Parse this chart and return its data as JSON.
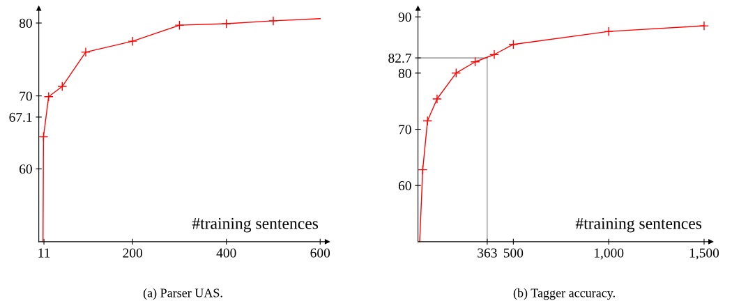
{
  "chart_data": [
    {
      "type": "line",
      "title": "(a) Parser UAS.",
      "xlabel": "#training sentences",
      "xlim": [
        0,
        615
      ],
      "ylim": [
        50,
        82
      ],
      "xticks": [
        {
          "value": 11,
          "label": "11"
        },
        200,
        400,
        600
      ],
      "yticks": [
        60,
        {
          "value": 67.1,
          "label": "67.1"
        },
        70,
        80
      ],
      "series": [
        {
          "type": "line",
          "color": "#ff0000",
          "marker": "none",
          "x": [
            9,
            10,
            21,
            50,
            100,
            200,
            300,
            400,
            500,
            600
          ],
          "values": [
            50,
            64.4,
            69.9,
            71.3,
            76,
            77.5,
            79.7,
            79.9,
            80.3,
            80.6
          ]
        },
        {
          "type": "scatter",
          "color": "#ff0000",
          "marker": "cross",
          "x": [
            10,
            21,
            50,
            100,
            200,
            300,
            400,
            500
          ],
          "values": [
            64.4,
            69.9,
            71.3,
            76,
            77.5,
            79.7,
            79.9,
            80.3
          ]
        }
      ]
    },
    {
      "type": "line",
      "title": "(b) Tagger accuracy.",
      "xlabel": "#training sentences",
      "xlim": [
        0,
        1535
      ],
      "ylim": [
        50,
        91.5
      ],
      "xticks": [
        {
          "value": 363,
          "label": "363"
        },
        500,
        {
          "value": 1000,
          "label": "1,000"
        },
        {
          "value": 1500,
          "label": "1,500"
        }
      ],
      "yticks": [
        60,
        70,
        80,
        {
          "value": 82.7,
          "label": "82.7"
        },
        90
      ],
      "ref_lines": [
        {
          "axis": "x",
          "value": 363,
          "color": "#808080"
        },
        {
          "axis": "y",
          "value": 82.7,
          "color": "#808080"
        }
      ],
      "series": [
        {
          "type": "line",
          "color": "#ff0000",
          "marker": "none",
          "x": [
            9,
            25,
            50,
            100,
            200,
            300,
            400,
            500,
            1000,
            1500
          ],
          "values": [
            50,
            62.8,
            71.5,
            75.4,
            80,
            82,
            83.3,
            85.1,
            87.4,
            88.4
          ]
        },
        {
          "type": "scatter",
          "color": "#ff0000",
          "marker": "cross",
          "x": [
            25,
            50,
            100,
            200,
            300,
            400,
            500,
            1000,
            1500
          ],
          "values": [
            62.8,
            71.5,
            75.4,
            80,
            82,
            83.3,
            85.1,
            87.4,
            88.4
          ]
        }
      ]
    }
  ]
}
